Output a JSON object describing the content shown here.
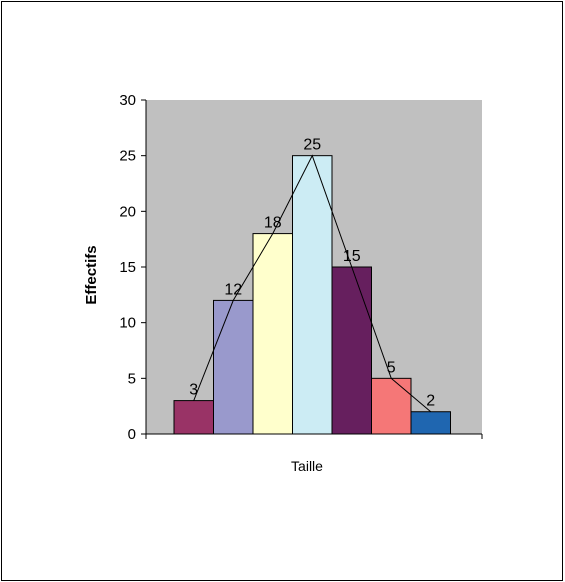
{
  "chart_data": {
    "type": "bar",
    "categories": [
      "",
      "",
      "",
      "",
      "",
      "",
      ""
    ],
    "values": [
      3,
      12,
      18,
      25,
      15,
      5,
      2
    ],
    "colors": [
      "#993366",
      "#9999cc",
      "#ffffcc",
      "#ccecf4",
      "#661f5e",
      "#f57777",
      "#1f66b0"
    ],
    "plot_background": "#c0c0c0",
    "frequency_polygon": true,
    "title": "",
    "xlabel": "Taille",
    "ylabel": "Effectifs",
    "ylim": [
      0,
      30
    ],
    "yticks": [
      0,
      5,
      10,
      15,
      20,
      25,
      30
    ],
    "data_labels": [
      "3",
      "12",
      "18",
      "25",
      "15",
      "5",
      "2"
    ],
    "grid": false,
    "legend": "none"
  }
}
